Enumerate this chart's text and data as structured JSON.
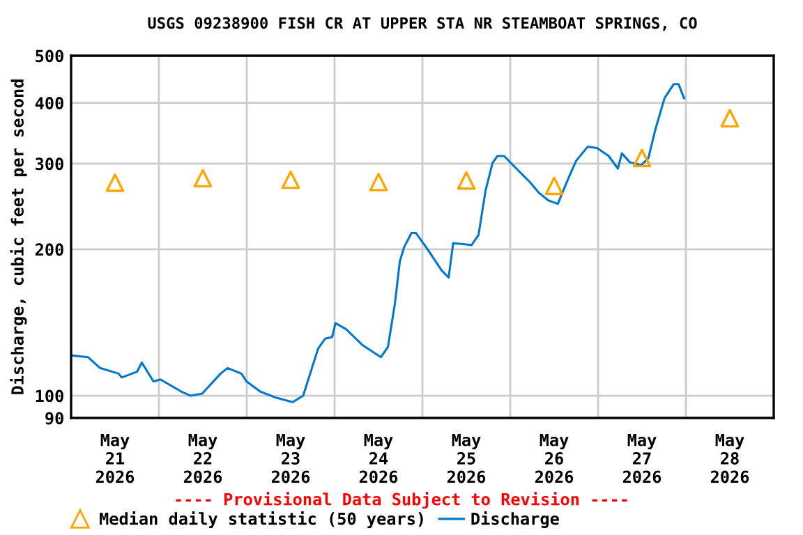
{
  "chart_data": {
    "type": "line",
    "title": "USGS 09238900 FISH CR AT UPPER STA NR STEAMBOAT SPRINGS, CO",
    "ylabel": "Discharge, cubic feet per second",
    "annotations": [
      "---- Provisional Data Subject to Revision ----"
    ],
    "series": [
      {
        "name": "Median daily statistic (50 years)",
        "type": "scatter",
        "marker": "triangle",
        "color": "#ffa500",
        "x": [
          "2026-05-21T12:00",
          "2026-05-22T12:00",
          "2026-05-23T12:00",
          "2026-05-24T12:00",
          "2026-05-25T12:00",
          "2026-05-26T12:00",
          "2026-05-27T12:00",
          "2026-05-28T12:00"
        ],
        "values": [
          274,
          280,
          278,
          275,
          277,
          270,
          308,
          372
        ]
      },
      {
        "name": "Discharge",
        "color": "#0077cc",
        "x": [
          "2026-05-21T00:15",
          "2026-05-21T04:40",
          "2026-05-21T07:55",
          "2026-05-21T13:00",
          "2026-05-21T13:50",
          "2026-05-21T18:00",
          "2026-05-21T19:20",
          "2026-05-21T22:30",
          "2026-05-22T00:25",
          "2026-05-22T06:05",
          "2026-05-22T08:40",
          "2026-05-22T11:50",
          "2026-05-22T16:50",
          "2026-05-22T18:45",
          "2026-05-22T22:35",
          "2026-05-22T23:55",
          "2026-05-23T03:40",
          "2026-05-23T08:05",
          "2026-05-23T12:35",
          "2026-05-23T15:25",
          "2026-05-23T19:30",
          "2026-05-23T21:25",
          "2026-05-23T23:20",
          "2026-05-24T00:15",
          "2026-05-24T03:10",
          "2026-05-24T07:40",
          "2026-05-24T12:40",
          "2026-05-24T14:35",
          "2026-05-24T16:30",
          "2026-05-24T17:50",
          "2026-05-24T19:00",
          "2026-05-24T21:00",
          "2026-05-24T22:15",
          "2026-05-25T01:25",
          "2026-05-25T05:15",
          "2026-05-25T07:10",
          "2026-05-25T08:25",
          "2026-05-25T13:25",
          "2026-05-25T15:20",
          "2026-05-25T17:15",
          "2026-05-25T19:10",
          "2026-05-25T20:30",
          "2026-05-25T22:20",
          "2026-05-26T01:30",
          "2026-05-26T05:20",
          "2026-05-26T07:55",
          "2026-05-26T10:25",
          "2026-05-26T13:00",
          "2026-05-26T16:05",
          "2026-05-26T18:00",
          "2026-05-26T21:10",
          "2026-05-26T23:45",
          "2026-05-27T02:55",
          "2026-05-27T05:25",
          "2026-05-27T06:30",
          "2026-05-27T08:40",
          "2026-05-27T11:50",
          "2026-05-27T13:45",
          "2026-05-27T15:35",
          "2026-05-27T18:10",
          "2026-05-27T20:40",
          "2026-05-27T22:00",
          "2026-05-27T23:30"
        ],
        "values": [
          121,
          120,
          114,
          111,
          109,
          112,
          117,
          107,
          108,
          102,
          100,
          101,
          111,
          114,
          111,
          107,
          102,
          99,
          97,
          100,
          125,
          131,
          132,
          141,
          137,
          127,
          120,
          126,
          155,
          189,
          202,
          216,
          216,
          200,
          181,
          175,
          206,
          204,
          214,
          264,
          301,
          311,
          311,
          294,
          275,
          261,
          252,
          248,
          282,
          304,
          325,
          323,
          311,
          293,
          315,
          302,
          298,
          308,
          351,
          409,
          437,
          437,
          409
        ]
      }
    ],
    "log": true,
    "xlim": [
      "2026-05-21T00:00",
      "2026-05-29T00:00"
    ],
    "xticks": [
      {
        "value": "2026-05-22T00:00",
        "label": null
      },
      {
        "value": "2026-05-23T00:00",
        "label": null
      },
      {
        "value": "2026-05-24T00:00",
        "label": null
      },
      {
        "value": "2026-05-25T00:00",
        "label": null
      },
      {
        "value": "2026-05-26T00:00",
        "label": null
      },
      {
        "value": "2026-05-27T00:00",
        "label": null
      },
      {
        "value": "2026-05-28T00:00",
        "label": null
      },
      {
        "value": "2026-05-21T12:00",
        "label": "May\n21\n2026"
      },
      {
        "value": "2026-05-22T12:00",
        "label": "May\n22\n2026"
      },
      {
        "value": "2026-05-23T12:00",
        "label": "May\n23\n2026"
      },
      {
        "value": "2026-05-24T12:00",
        "label": "May\n24\n2026"
      },
      {
        "value": "2026-05-25T12:00",
        "label": "May\n25\n2026"
      },
      {
        "value": "2026-05-26T12:00",
        "label": "May\n26\n2026"
      },
      {
        "value": "2026-05-27T12:00",
        "label": "May\n27\n2026"
      },
      {
        "value": "2026-05-28T12:00",
        "label": "May\n28\n2026"
      }
    ],
    "ylim": [
      90,
      500
    ],
    "yticks": [
      90,
      100,
      200,
      300,
      400,
      500
    ],
    "grid": true,
    "legend": "bottom"
  }
}
